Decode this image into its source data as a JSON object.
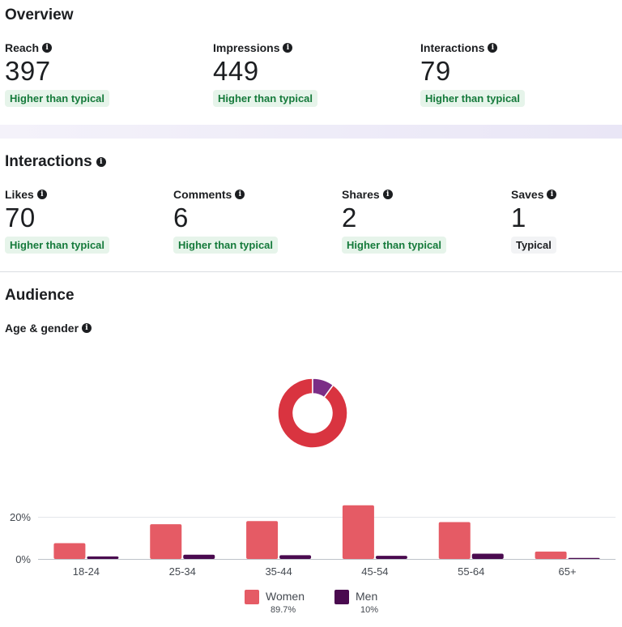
{
  "overview": {
    "title": "Overview",
    "metrics": [
      {
        "label": "Reach",
        "value": "397",
        "badge": "Higher than typical"
      },
      {
        "label": "Impressions",
        "value": "449",
        "badge": "Higher than typical"
      },
      {
        "label": "Interactions",
        "value": "79",
        "badge": "Higher than typical"
      }
    ]
  },
  "interactions": {
    "title": "Interactions",
    "metrics": [
      {
        "label": "Likes",
        "value": "70",
        "badge": "Higher than typical"
      },
      {
        "label": "Comments",
        "value": "6",
        "badge": "Higher than typical"
      },
      {
        "label": "Shares",
        "value": "2",
        "badge": "Higher than typical"
      },
      {
        "label": "Saves",
        "value": "1",
        "badge": "Typical"
      }
    ]
  },
  "audience": {
    "title": "Audience",
    "subtitle": "Age & gender"
  },
  "colors": {
    "women": "#e55b65",
    "men": "#4a0a4f",
    "donut_women": "#d93440",
    "donut_men": "#7b2d86",
    "positive_badge_bg": "#e6f4ea",
    "positive_badge_text": "#157a3b"
  },
  "chart_data": [
    {
      "type": "pie",
      "variant": "donut",
      "labels": [
        "Women",
        "Men"
      ],
      "values": [
        89.7,
        10
      ]
    },
    {
      "type": "bar",
      "categories": [
        "18-24",
        "25-34",
        "35-44",
        "45-54",
        "55-64",
        "65+"
      ],
      "series": [
        {
          "name": "Women",
          "values": [
            7.5,
            16.5,
            18,
            25.5,
            17.5,
            3.5
          ]
        },
        {
          "name": "Men",
          "values": [
            1.2,
            2,
            1.8,
            1.5,
            2.5,
            0.5
          ]
        }
      ],
      "yticks": [
        "20%",
        "0%"
      ],
      "ylim": [
        0,
        30
      ],
      "grid": true,
      "legend": [
        {
          "name": "Women",
          "pct": "89.7%"
        },
        {
          "name": "Men",
          "pct": "10%"
        }
      ]
    }
  ]
}
